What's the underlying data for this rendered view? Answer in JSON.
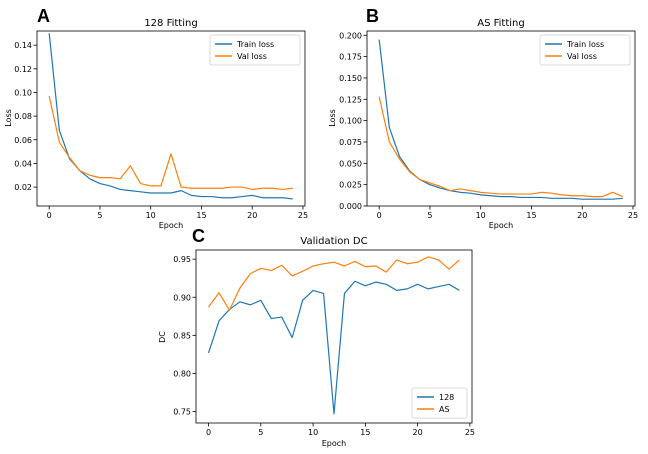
{
  "colors": {
    "blue": "#1f77b4",
    "orange": "#ff7f0e"
  },
  "chart_data": [
    {
      "panel": "A",
      "type": "line",
      "title": "128 Fitting",
      "xlabel": "Epoch",
      "ylabel": "Loss",
      "xlim": [
        -1.2,
        25.2
      ],
      "ylim": [
        0.004,
        0.152
      ],
      "xticks": [
        0,
        5,
        10,
        15,
        20,
        25
      ],
      "yticks": [
        0.02,
        0.04,
        0.06,
        0.08,
        0.1,
        0.12,
        0.14
      ],
      "ytick_labels": [
        "0.02",
        "0.04",
        "0.06",
        "0.08",
        "0.10",
        "0.12",
        "0.14"
      ],
      "legend_position": "top-right",
      "x": [
        0,
        1,
        2,
        3,
        4,
        5,
        6,
        7,
        8,
        9,
        10,
        11,
        12,
        13,
        14,
        15,
        16,
        17,
        18,
        19,
        20,
        21,
        22,
        23,
        24
      ],
      "series": [
        {
          "name": "Train loss",
          "color": "blue",
          "values": [
            0.15,
            0.068,
            0.044,
            0.034,
            0.027,
            0.023,
            0.021,
            0.018,
            0.017,
            0.016,
            0.015,
            0.015,
            0.015,
            0.017,
            0.013,
            0.012,
            0.012,
            0.011,
            0.011,
            0.012,
            0.013,
            0.011,
            0.011,
            0.011,
            0.01
          ]
        },
        {
          "name": "Val loss",
          "color": "orange",
          "values": [
            0.097,
            0.058,
            0.045,
            0.034,
            0.03,
            0.028,
            0.028,
            0.027,
            0.038,
            0.023,
            0.021,
            0.021,
            0.048,
            0.02,
            0.019,
            0.019,
            0.019,
            0.019,
            0.02,
            0.02,
            0.018,
            0.019,
            0.019,
            0.018,
            0.019
          ]
        }
      ]
    },
    {
      "panel": "B",
      "type": "line",
      "title": "AS Fitting",
      "xlabel": "Epoch",
      "ylabel": "Loss",
      "xlim": [
        -1.2,
        25.2
      ],
      "ylim": [
        0.0,
        0.205
      ],
      "xticks": [
        0,
        5,
        10,
        15,
        20,
        25
      ],
      "yticks": [
        0.0,
        0.025,
        0.05,
        0.075,
        0.1,
        0.125,
        0.15,
        0.175,
        0.2
      ],
      "ytick_labels": [
        "0.000",
        "0.025",
        "0.050",
        "0.075",
        "0.100",
        "0.125",
        "0.150",
        "0.175",
        "0.200"
      ],
      "legend_position": "top-right",
      "x": [
        0,
        1,
        2,
        3,
        4,
        5,
        6,
        7,
        8,
        9,
        10,
        11,
        12,
        13,
        14,
        15,
        16,
        17,
        18,
        19,
        20,
        21,
        22,
        23,
        24
      ],
      "series": [
        {
          "name": "Train loss",
          "color": "blue",
          "values": [
            0.195,
            0.092,
            0.058,
            0.041,
            0.031,
            0.025,
            0.021,
            0.018,
            0.016,
            0.015,
            0.013,
            0.012,
            0.011,
            0.011,
            0.01,
            0.01,
            0.01,
            0.009,
            0.009,
            0.009,
            0.008,
            0.008,
            0.008,
            0.008,
            0.009
          ]
        },
        {
          "name": "Val loss",
          "color": "orange",
          "values": [
            0.128,
            0.075,
            0.055,
            0.04,
            0.031,
            0.027,
            0.023,
            0.018,
            0.02,
            0.018,
            0.016,
            0.015,
            0.014,
            0.014,
            0.014,
            0.014,
            0.016,
            0.015,
            0.013,
            0.012,
            0.012,
            0.011,
            0.011,
            0.016,
            0.011
          ]
        }
      ]
    },
    {
      "panel": "C",
      "type": "line",
      "title": "Validation DC",
      "xlabel": "Epoch",
      "ylabel": "DC",
      "xlim": [
        -1.2,
        25.2
      ],
      "ylim": [
        0.735,
        0.962
      ],
      "xticks": [
        0,
        5,
        10,
        15,
        20,
        25
      ],
      "yticks": [
        0.75,
        0.8,
        0.85,
        0.9,
        0.95
      ],
      "ytick_labels": [
        "0.75",
        "0.80",
        "0.85",
        "0.90",
        "0.95"
      ],
      "legend_position": "bottom-right",
      "x": [
        0,
        1,
        2,
        3,
        4,
        5,
        6,
        7,
        8,
        9,
        10,
        11,
        12,
        13,
        14,
        15,
        16,
        17,
        18,
        19,
        20,
        21,
        22,
        23,
        24
      ],
      "series": [
        {
          "name": "128",
          "color": "blue",
          "values": [
            0.827,
            0.869,
            0.884,
            0.894,
            0.89,
            0.896,
            0.872,
            0.874,
            0.847,
            0.896,
            0.909,
            0.905,
            0.747,
            0.905,
            0.921,
            0.915,
            0.92,
            0.917,
            0.909,
            0.911,
            0.917,
            0.911,
            0.914,
            0.917,
            0.909
          ]
        },
        {
          "name": "AS",
          "color": "orange",
          "values": [
            0.887,
            0.906,
            0.883,
            0.912,
            0.931,
            0.938,
            0.935,
            0.942,
            0.928,
            0.934,
            0.941,
            0.944,
            0.946,
            0.941,
            0.947,
            0.94,
            0.941,
            0.933,
            0.949,
            0.944,
            0.946,
            0.953,
            0.949,
            0.937,
            0.949
          ]
        }
      ]
    }
  ]
}
